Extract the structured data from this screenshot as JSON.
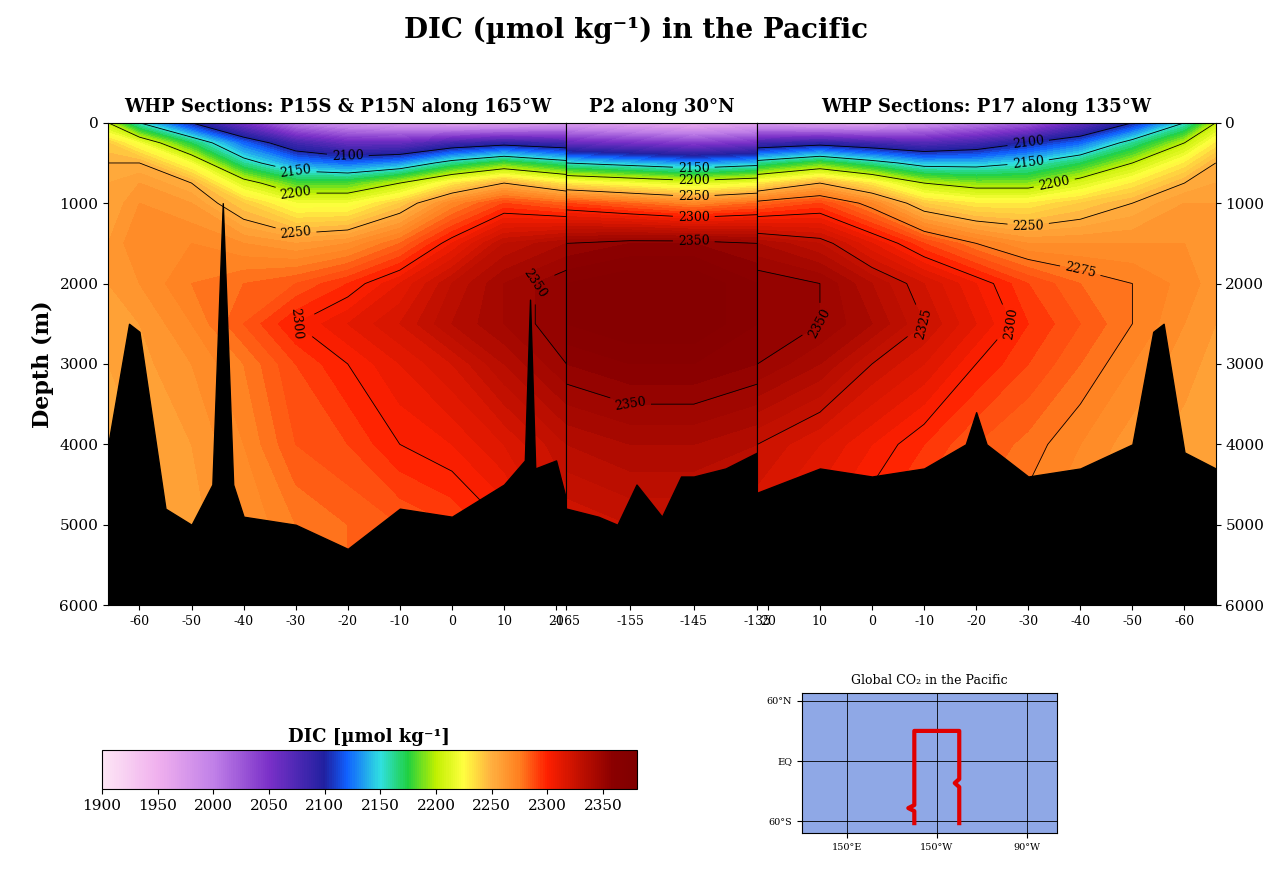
{
  "title": "DIC (µmol kg⁻¹) in the Pacific",
  "ylabel": "Depth (m)",
  "colorbar": {
    "label": "DIC [µmol kg⁻¹]",
    "range": [
      1900,
      2380
    ],
    "ticks": [
      1900,
      1950,
      2000,
      2050,
      2100,
      2150,
      2200,
      2250,
      2300,
      2350
    ]
  },
  "chart_data": [
    {
      "type": "contour",
      "title": "WHP Sections: P15S & P15N along 165°W",
      "xlim": [
        -66,
        22
      ],
      "xticks": [
        -60,
        -50,
        -40,
        -30,
        -20,
        -10,
        0,
        10,
        20
      ],
      "ylim": [
        6000,
        0
      ],
      "yticks": [
        0,
        1000,
        2000,
        3000,
        4000,
        5000,
        6000
      ],
      "x": [
        -66,
        -60,
        -50,
        -40,
        -30,
        -20,
        -10,
        0,
        10,
        22
      ],
      "depth": [
        0,
        250,
        500,
        750,
        1000,
        1500,
        2000,
        2500,
        3000,
        4000,
        5000,
        6000
      ],
      "cells": [
        [
          2200,
          2150,
          2100,
          2050,
          2000,
          1980,
          1970,
          1960,
          1960,
          1970
        ],
        [
          2240,
          2220,
          2170,
          2120,
          2080,
          2060,
          2060,
          2080,
          2090,
          2080
        ],
        [
          2250,
          2250,
          2220,
          2160,
          2130,
          2120,
          2130,
          2160,
          2180,
          2160
        ],
        [
          2255,
          2260,
          2250,
          2210,
          2180,
          2180,
          2200,
          2230,
          2250,
          2230
        ],
        [
          2255,
          2265,
          2260,
          2240,
          2220,
          2220,
          2240,
          2270,
          2290,
          2280
        ],
        [
          2260,
          2270,
          2270,
          2265,
          2260,
          2265,
          2280,
          2305,
          2330,
          2340
        ],
        [
          2260,
          2265,
          2275,
          2280,
          2285,
          2295,
          2310,
          2330,
          2345,
          2355
        ],
        [
          2255,
          2260,
          2270,
          2285,
          2300,
          2310,
          2320,
          2335,
          2345,
          2355
        ],
        [
          2255,
          2258,
          2265,
          2275,
          2290,
          2300,
          2310,
          2320,
          2335,
          2350
        ],
        [
          2255,
          2255,
          2260,
          2270,
          2285,
          2290,
          2300,
          2305,
          2315,
          2330
        ],
        [
          2255,
          2255,
          2258,
          2265,
          2275,
          2280,
          2285,
          2290,
          2300,
          2320
        ],
        [
          2255,
          2255,
          2258,
          2265,
          2275,
          2280,
          2285,
          2290,
          2300,
          2320
        ]
      ],
      "seafloor_x": [
        -66,
        -62,
        -60,
        -55,
        -50,
        -46,
        -44,
        -42,
        -40,
        -30,
        -20,
        -10,
        0,
        10,
        14,
        15,
        16,
        20,
        22
      ],
      "seafloor_depth": [
        4000,
        2500,
        2600,
        4800,
        5000,
        4500,
        1000,
        4500,
        4900,
        5000,
        5300,
        4800,
        4900,
        4500,
        4200,
        2200,
        4300,
        4200,
        4700
      ],
      "contour_levels": [
        2100,
        2150,
        2200,
        2250,
        2300,
        2350
      ]
    },
    {
      "type": "contour",
      "title": "P2 along 30°N",
      "tick_labels": "x",
      "xlim": [
        -165,
        -135
      ],
      "xticks": [
        -165,
        -155,
        -145,
        -135
      ],
      "ylim": [
        6000,
        0
      ],
      "yticks": [
        0,
        1000,
        2000,
        3000,
        4000,
        5000,
        6000
      ],
      "x": [
        -165,
        -155,
        -145,
        -135
      ],
      "depth": [
        0,
        250,
        500,
        750,
        1000,
        1500,
        2000,
        2500,
        3000,
        4000,
        5000,
        6000
      ],
      "cells": [
        [
          1970,
          1960,
          1950,
          1960
        ],
        [
          2060,
          2050,
          2040,
          2050
        ],
        [
          2150,
          2140,
          2130,
          2140
        ],
        [
          2230,
          2220,
          2210,
          2220
        ],
        [
          2290,
          2280,
          2270,
          2280
        ],
        [
          2350,
          2355,
          2355,
          2350
        ],
        [
          2365,
          2370,
          2370,
          2360
        ],
        [
          2365,
          2370,
          2370,
          2360
        ],
        [
          2355,
          2360,
          2360,
          2355
        ],
        [
          2335,
          2340,
          2340,
          2335
        ],
        [
          2320,
          2325,
          2325,
          2320
        ],
        [
          2320,
          2325,
          2325,
          2320
        ]
      ],
      "seafloor_x": [
        -165,
        -160,
        -157,
        -154,
        -150,
        -147,
        -145,
        -140,
        -135
      ],
      "seafloor_depth": [
        4800,
        4900,
        5000,
        4500,
        4900,
        4400,
        4400,
        4300,
        4100
      ],
      "contour_levels": [
        2150,
        2200,
        2250,
        2300,
        2350
      ]
    },
    {
      "type": "contour",
      "title": "WHP Sections: P17 along 135°W",
      "xlim": [
        22,
        -66
      ],
      "xticks": [
        20,
        10,
        0,
        -10,
        -20,
        -30,
        -40,
        -50,
        -60
      ],
      "ylim": [
        6000,
        0
      ],
      "yticks": [
        0,
        1000,
        2000,
        3000,
        4000,
        5000,
        6000
      ],
      "x": [
        22,
        10,
        0,
        -10,
        -20,
        -30,
        -40,
        -50,
        -60,
        -66
      ],
      "depth": [
        0,
        250,
        500,
        750,
        1000,
        1500,
        2000,
        2500,
        3000,
        4000,
        5000,
        6000
      ],
      "cells": [
        [
          1970,
          1960,
          1960,
          1980,
          2000,
          2020,
          2060,
          2100,
          2150,
          2200
        ],
        [
          2080,
          2090,
          2080,
          2070,
          2080,
          2100,
          2120,
          2160,
          2200,
          2230
        ],
        [
          2160,
          2180,
          2160,
          2140,
          2140,
          2150,
          2170,
          2200,
          2230,
          2250
        ],
        [
          2230,
          2250,
          2230,
          2200,
          2190,
          2190,
          2210,
          2230,
          2250,
          2255
        ],
        [
          2280,
          2290,
          2270,
          2240,
          2230,
          2230,
          2240,
          2250,
          2260,
          2260
        ],
        [
          2340,
          2330,
          2310,
          2290,
          2275,
          2265,
          2265,
          2265,
          2265,
          2262
        ],
        [
          2355,
          2350,
          2335,
          2320,
          2305,
          2290,
          2280,
          2275,
          2268,
          2262
        ],
        [
          2355,
          2350,
          2340,
          2325,
          2310,
          2295,
          2285,
          2275,
          2265,
          2260
        ],
        [
          2350,
          2340,
          2325,
          2315,
          2300,
          2290,
          2280,
          2270,
          2262,
          2258
        ],
        [
          2325,
          2315,
          2305,
          2295,
          2285,
          2278,
          2270,
          2262,
          2258,
          2256
        ],
        [
          2315,
          2305,
          2295,
          2285,
          2278,
          2272,
          2265,
          2260,
          2256,
          2255
        ],
        [
          2315,
          2305,
          2295,
          2285,
          2278,
          2272,
          2265,
          2260,
          2256,
          2255
        ]
      ],
      "seafloor_x": [
        22,
        10,
        0,
        -10,
        -18,
        -20,
        -22,
        -30,
        -40,
        -50,
        -54,
        -56,
        -60,
        -66
      ],
      "seafloor_depth": [
        4600,
        4300,
        4400,
        4300,
        4000,
        3600,
        4000,
        4400,
        4300,
        4000,
        2600,
        2500,
        4100,
        4300
      ],
      "contour_levels": [
        2100,
        2150,
        2200,
        2250,
        2275,
        2300,
        2325,
        2350
      ]
    },
    {
      "type": "map",
      "title": "Global CO₂ in the Pacific",
      "grid": true,
      "color": "#e00000",
      "xlim": [
        120,
        290
      ],
      "ylim": [
        -72,
        68
      ],
      "xticks": [
        {
          "value": 150,
          "label": "150°E"
        },
        {
          "value": 210,
          "label": "150°W"
        },
        {
          "value": 270,
          "label": "90°W"
        }
      ],
      "yticks": [
        {
          "value": 60,
          "label": "60°N"
        },
        {
          "value": 0,
          "label": "EQ"
        },
        {
          "value": -60,
          "label": "60°S"
        }
      ],
      "track_lon": [
        195,
        195,
        191,
        195,
        195,
        225,
        225,
        222,
        225,
        225
      ],
      "track_lat": [
        -62,
        -50,
        -47,
        -44,
        30,
        30,
        -18,
        -22,
        -26,
        -62
      ]
    }
  ]
}
